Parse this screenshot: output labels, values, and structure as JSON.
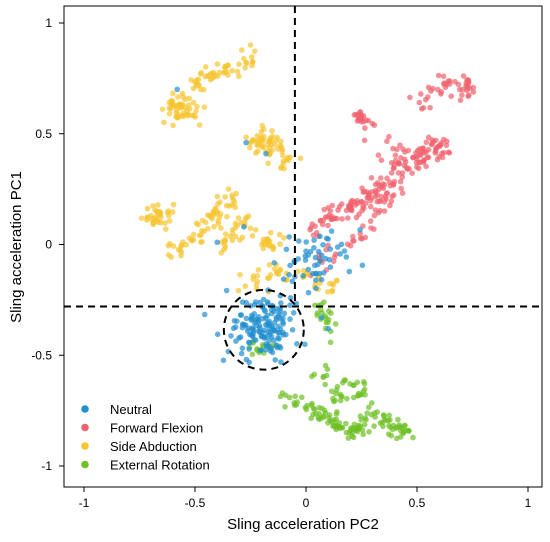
{
  "chart_data": {
    "type": "scatter",
    "title": "",
    "xlabel": "Sling acceleration PC2",
    "ylabel": "Sling acceleration PC1",
    "xlim": [
      -1.05,
      1.05
    ],
    "ylim": [
      -1.05,
      1.05
    ],
    "xticks": [
      "-1",
      "-0.5",
      "0",
      "0.5",
      "1"
    ],
    "yticks": [
      "-1",
      "-0.5",
      "0",
      "0.5",
      "1"
    ],
    "grid": false,
    "legend_position": "bottom-left",
    "reference_lines": {
      "vertical_x": -0.05,
      "horizontal_y": -0.28,
      "style": "dashed"
    },
    "highlight_circle": {
      "center": [
        -0.19,
        -0.385
      ],
      "radius": 0.18,
      "style": "dashed"
    },
    "series": [
      {
        "name": "Neutral",
        "color": "#1f8fcf",
        "clusters": [
          {
            "cx": -0.19,
            "cy": -0.38,
            "sx": 0.08,
            "sy": 0.07,
            "n": 150
          },
          {
            "cx": 0.02,
            "cy": -0.09,
            "sx": 0.07,
            "sy": 0.06,
            "n": 40
          },
          {
            "cx": 0.13,
            "cy": 0.02,
            "sx": 0.07,
            "sy": 0.04,
            "n": 15
          }
        ],
        "points": [
          [
            -0.28,
            0.08
          ],
          [
            -0.4,
            0.01
          ],
          [
            -0.18,
            0.41
          ],
          [
            -0.27,
            0.46
          ],
          [
            -0.58,
            0.7
          ],
          [
            0.1,
            -0.38
          ]
        ]
      },
      {
        "name": "Forward Flexion",
        "color": "#f1606c",
        "paths": [
          {
            "pts": [
              [
                0.0,
                0.05
              ],
              [
                0.08,
                0.12
              ],
              [
                0.17,
                0.15
              ],
              [
                0.24,
                0.19
              ],
              [
                0.3,
                0.22
              ],
              [
                0.35,
                0.25
              ]
            ],
            "n": 80,
            "jitter": 0.025
          },
          {
            "pts": [
              [
                0.05,
                -0.08
              ],
              [
                0.18,
                0.0
              ],
              [
                0.28,
                0.1
              ],
              [
                0.38,
                0.22
              ],
              [
                0.45,
                0.32
              ],
              [
                0.52,
                0.38
              ],
              [
                0.59,
                0.43
              ],
              [
                0.64,
                0.44
              ]
            ],
            "n": 90,
            "jitter": 0.025
          },
          {
            "pts": [
              [
                0.3,
                0.25
              ],
              [
                0.42,
                0.33
              ],
              [
                0.5,
                0.4
              ],
              [
                0.58,
                0.46
              ]
            ],
            "n": 30,
            "jitter": 0.02
          },
          {
            "pts": [
              [
                0.23,
                0.58
              ],
              [
                0.28,
                0.55
              ]
            ],
            "n": 20,
            "jitter": 0.015
          },
          {
            "pts": [
              [
                0.5,
                0.64
              ],
              [
                0.58,
                0.7
              ],
              [
                0.65,
                0.75
              ],
              [
                0.72,
                0.72
              ],
              [
                0.74,
                0.68
              ]
            ],
            "n": 45,
            "jitter": 0.02
          },
          {
            "pts": [
              [
                0.3,
                0.5
              ],
              [
                0.38,
                0.42
              ],
              [
                0.44,
                0.36
              ]
            ],
            "n": 15,
            "jitter": 0.03
          }
        ]
      },
      {
        "name": "Side Abduction",
        "color": "#f7c531",
        "paths": [
          {
            "pts": [
              [
                -0.52,
                0.73
              ],
              [
                -0.45,
                0.75
              ],
              [
                -0.38,
                0.78
              ],
              [
                -0.32,
                0.8
              ],
              [
                -0.24,
                0.85
              ]
            ],
            "n": 50,
            "jitter": 0.025
          },
          {
            "pts": [
              [
                -0.6,
                0.6
              ],
              [
                -0.56,
                0.64
              ],
              [
                -0.52,
                0.58
              ]
            ],
            "n": 55,
            "jitter": 0.03
          },
          {
            "pts": [
              [
                -0.22,
                0.45
              ],
              [
                -0.16,
                0.43
              ],
              [
                -0.08,
                0.38
              ]
            ],
            "n": 45,
            "jitter": 0.03
          },
          {
            "pts": [
              [
                -0.24,
                0.52
              ],
              [
                -0.18,
                0.47
              ]
            ],
            "n": 15,
            "jitter": 0.03
          },
          {
            "pts": [
              [
                -0.7,
                0.1
              ],
              [
                -0.65,
                0.15
              ]
            ],
            "n": 35,
            "jitter": 0.025
          },
          {
            "pts": [
              [
                -0.62,
                -0.04
              ],
              [
                -0.52,
                0.02
              ],
              [
                -0.45,
                0.1
              ],
              [
                -0.38,
                0.17
              ],
              [
                -0.33,
                0.22
              ]
            ],
            "n": 60,
            "jitter": 0.025
          },
          {
            "pts": [
              [
                -0.4,
                -0.02
              ],
              [
                -0.32,
                0.06
              ],
              [
                -0.27,
                0.12
              ]
            ],
            "n": 30,
            "jitter": 0.025
          },
          {
            "pts": [
              [
                -0.2,
                -0.0
              ],
              [
                -0.12,
                0.02
              ]
            ],
            "n": 20,
            "jitter": 0.02
          },
          {
            "pts": [
              [
                -0.3,
                -0.2
              ],
              [
                -0.22,
                -0.16
              ],
              [
                -0.1,
                -0.13
              ]
            ],
            "n": 25,
            "jitter": 0.025
          },
          {
            "pts": [
              [
                -0.06,
                -0.1
              ],
              [
                0.07,
                -0.2
              ],
              [
                0.12,
                -0.18
              ]
            ],
            "n": 20,
            "jitter": 0.02
          }
        ]
      },
      {
        "name": "External Rotation",
        "color": "#6ec023",
        "paths": [
          {
            "pts": [
              [
                -0.1,
                -0.68
              ],
              [
                -0.02,
                -0.72
              ],
              [
                0.08,
                -0.78
              ],
              [
                0.16,
                -0.82
              ],
              [
                0.22,
                -0.85
              ],
              [
                0.27,
                -0.8
              ],
              [
                0.33,
                -0.78
              ],
              [
                0.4,
                -0.82
              ],
              [
                0.45,
                -0.85
              ]
            ],
            "n": 120,
            "jitter": 0.02
          },
          {
            "pts": [
              [
                0.12,
                -0.7
              ],
              [
                0.2,
                -0.63
              ],
              [
                0.25,
                -0.7
              ],
              [
                0.32,
                -0.76
              ]
            ],
            "n": 35,
            "jitter": 0.025
          },
          {
            "pts": [
              [
                0.07,
                -0.26
              ],
              [
                0.09,
                -0.34
              ],
              [
                0.11,
                -0.4
              ]
            ],
            "n": 20,
            "jitter": 0.02
          },
          {
            "pts": [
              [
                -0.28,
                -0.49
              ],
              [
                -0.2,
                -0.47
              ],
              [
                -0.13,
                -0.46
              ]
            ],
            "n": 15,
            "jitter": 0.02
          },
          {
            "pts": [
              [
                0.05,
                -0.55
              ],
              [
                0.08,
                -0.6
              ]
            ],
            "n": 8,
            "jitter": 0.02
          }
        ]
      }
    ]
  }
}
